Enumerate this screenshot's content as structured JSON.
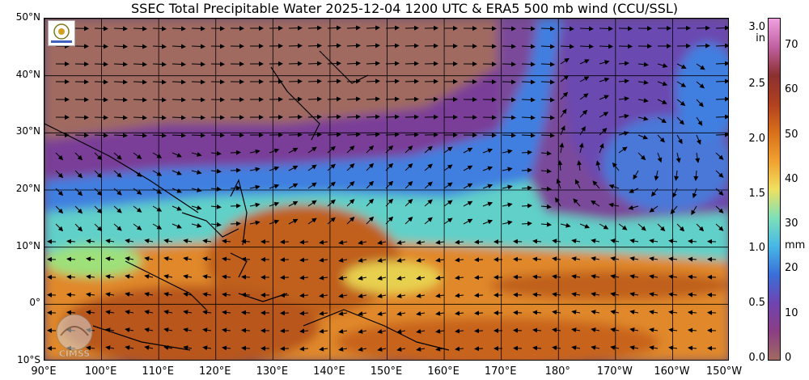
{
  "title": "SSEC Total Precipitable Water  2025-12-04 1200 UTC & ERA5 500 mb wind (CCU/SSL)",
  "map": {
    "lat_labels": [
      "50°N",
      "40°N",
      "30°N",
      "20°N",
      "10°N",
      "0°",
      "10°S"
    ],
    "lon_labels": [
      "90°E",
      "100°E",
      "110°E",
      "120°E",
      "130°E",
      "140°E",
      "150°E",
      "160°E",
      "170°E",
      "180°",
      "170°W",
      "160°W",
      "150°W"
    ],
    "lat_range": [
      -10,
      50
    ],
    "lon_range_east": [
      90,
      210
    ]
  },
  "colorbar": {
    "inch_unit": "in",
    "mm_unit": "mm",
    "inch_ticks": [
      "3.0",
      "2.5",
      "2.0",
      "1.5",
      "1.0",
      "0.5",
      "0.0"
    ],
    "mm_ticks": [
      "70",
      "60",
      "50",
      "40",
      "30",
      "20",
      "10",
      "0"
    ],
    "colors": [
      "#a06a60",
      "#8b3e84",
      "#6e44b0",
      "#3a6fd8",
      "#47b7e6",
      "#7ee0b8",
      "#f0e060",
      "#f0a030",
      "#d8701a",
      "#b04020",
      "#8b3030",
      "#c060a0",
      "#f0a0e0"
    ]
  },
  "logos": {
    "top": "logo-icon",
    "bottom": "CIMSS"
  }
}
